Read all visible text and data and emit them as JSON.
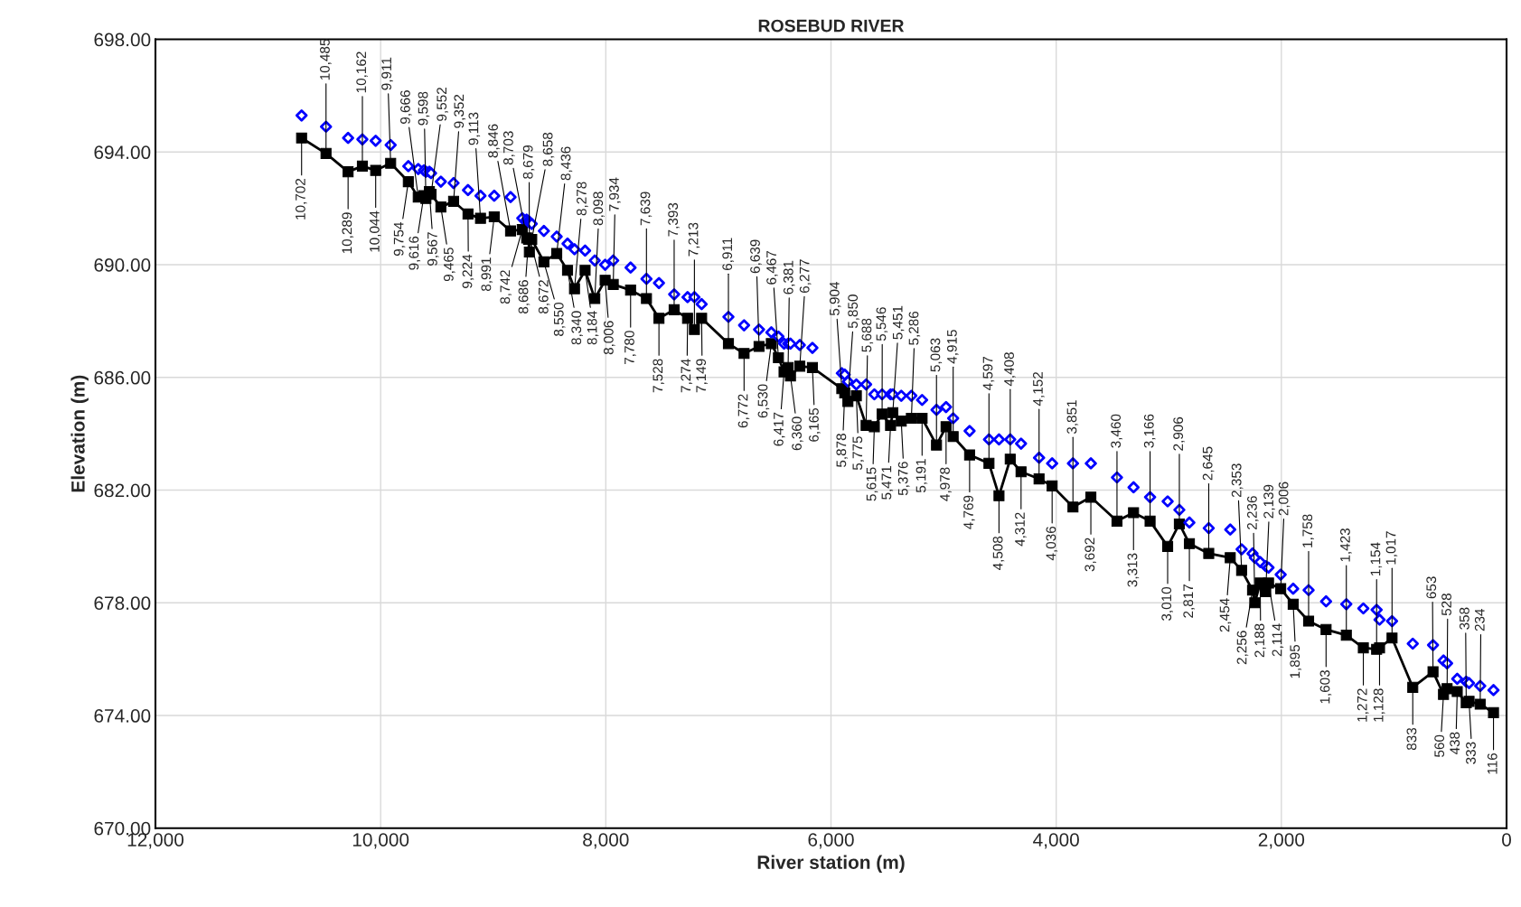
{
  "chart_data": {
    "type": "line",
    "title": "ROSEBUD RIVER",
    "xlabel": "River station (m)",
    "ylabel": "Elevation (m)",
    "xlim": [
      12000,
      0
    ],
    "xticks": [
      {
        "value": 12000,
        "label": "12,000"
      },
      {
        "value": 10000,
        "label": "10,000"
      },
      {
        "value": 8000,
        "label": "8,000"
      },
      {
        "value": 6000,
        "label": "6,000"
      },
      {
        "value": 4000,
        "label": "4,000"
      },
      {
        "value": 2000,
        "label": "2,000"
      },
      0
    ],
    "ylim": [
      670,
      698
    ],
    "yticks": [
      {
        "value": 670,
        "label": "670.00"
      },
      {
        "value": 674,
        "label": "674.00"
      },
      {
        "value": 678,
        "label": "678.00"
      },
      {
        "value": 682,
        "label": "682.00"
      },
      {
        "value": 686,
        "label": "686.00"
      },
      {
        "value": 690,
        "label": "690.00"
      },
      {
        "value": 694,
        "label": "694.00"
      },
      {
        "value": 698,
        "label": "698.00"
      }
    ],
    "grid": true,
    "x": [
      10702,
      10485,
      10289,
      10162,
      10044,
      9911,
      9754,
      9666,
      9616,
      9598,
      9567,
      9552,
      9465,
      9352,
      9224,
      9113,
      8991,
      8846,
      8742,
      8703,
      8686,
      8679,
      8672,
      8658,
      8550,
      8436,
      8340,
      8278,
      8184,
      8098,
      8006,
      7934,
      7780,
      7639,
      7528,
      7393,
      7274,
      7213,
      7149,
      6911,
      6772,
      6639,
      6530,
      6467,
      6417,
      6381,
      6360,
      6277,
      6165,
      5904,
      5878,
      5850,
      5775,
      5688,
      5615,
      5546,
      5471,
      5451,
      5376,
      5286,
      5191,
      5063,
      4978,
      4915,
      4769,
      4597,
      4508,
      4408,
      4312,
      4152,
      4036,
      3851,
      3692,
      3460,
      3313,
      3166,
      3010,
      2906,
      2817,
      2645,
      2454,
      2353,
      2256,
      2236,
      2188,
      2139,
      2114,
      2006,
      1895,
      1758,
      1603,
      1423,
      1272,
      1154,
      1128,
      1017,
      833,
      653,
      560,
      528,
      438,
      358,
      333,
      234,
      116
    ],
    "series": [
      {
        "color": "#000000",
        "marker": "square",
        "line_style": "solid",
        "values": [
          694.5,
          693.95,
          693.3,
          693.5,
          693.35,
          693.6,
          692.95,
          692.4,
          692.45,
          692.35,
          692.6,
          692.5,
          692.05,
          692.25,
          691.8,
          691.65,
          691.7,
          691.2,
          691.25,
          690.95,
          690.9,
          690.45,
          690.9,
          690.9,
          690.1,
          690.4,
          689.8,
          689.15,
          689.8,
          688.8,
          689.45,
          689.3,
          689.1,
          688.8,
          688.1,
          688.4,
          688.1,
          687.7,
          688.1,
          687.2,
          686.85,
          687.1,
          687.2,
          686.7,
          686.2,
          686.35,
          686.05,
          686.4,
          686.35,
          685.6,
          685.45,
          685.15,
          685.35,
          684.3,
          684.25,
          684.7,
          684.3,
          684.75,
          684.45,
          684.55,
          684.55,
          683.6,
          684.25,
          683.9,
          683.25,
          682.95,
          681.8,
          683.1,
          682.65,
          682.4,
          682.15,
          681.4,
          681.75,
          680.9,
          681.2,
          680.9,
          680.0,
          680.8,
          680.1,
          679.75,
          679.6,
          679.15,
          678.45,
          678.0,
          678.7,
          678.4,
          678.7,
          678.5,
          677.95,
          677.35,
          677.05,
          676.85,
          676.4,
          676.35,
          676.4,
          676.75,
          675.0,
          675.55,
          674.75,
          674.95,
          674.85,
          674.45,
          674.5,
          674.4,
          674.1
        ]
      },
      {
        "type": "scatter",
        "color": "#0000ff",
        "marker": "diamond",
        "values": [
          695.3,
          694.9,
          694.5,
          694.45,
          694.4,
          694.25,
          693.5,
          693.4,
          693.35,
          693.3,
          693.3,
          693.25,
          692.95,
          692.9,
          692.65,
          692.45,
          692.45,
          692.4,
          691.65,
          691.6,
          691.55,
          691.5,
          691.5,
          691.45,
          691.2,
          691.0,
          690.75,
          690.55,
          690.5,
          690.15,
          690.0,
          690.15,
          689.9,
          689.5,
          689.35,
          688.95,
          688.85,
          688.85,
          688.6,
          688.15,
          687.85,
          687.7,
          687.6,
          687.45,
          687.2,
          687.2,
          687.2,
          687.15,
          687.05,
          686.15,
          686.1,
          685.85,
          685.75,
          685.75,
          685.4,
          685.4,
          685.4,
          685.4,
          685.35,
          685.35,
          685.2,
          684.85,
          684.95,
          684.55,
          684.1,
          683.8,
          683.8,
          683.8,
          683.65,
          683.15,
          682.95,
          682.95,
          682.95,
          682.45,
          682.1,
          681.75,
          681.6,
          681.3,
          680.85,
          680.65,
          680.6,
          679.9,
          679.75,
          679.6,
          679.45,
          679.3,
          679.25,
          679.0,
          678.5,
          678.45,
          678.05,
          677.95,
          677.8,
          677.75,
          677.4,
          677.35,
          676.55,
          676.5,
          675.95,
          675.85,
          675.3,
          675.2,
          675.15,
          675.05,
          674.9
        ]
      }
    ],
    "annotations": [
      {
        "text": "10,702",
        "x": 10702,
        "y": 694.5
      },
      {
        "text": "10,485",
        "x": 10485,
        "y": 693.95
      },
      {
        "text": "10,289",
        "x": 10289,
        "y": 693.3
      },
      {
        "text": "10,162",
        "x": 10162,
        "y": 693.5
      },
      {
        "text": "10,044",
        "x": 10044,
        "y": 693.35
      },
      {
        "text": "9,911",
        "x": 9911,
        "y": 693.6
      },
      {
        "text": "9,754",
        "x": 9754,
        "y": 692.95
      },
      {
        "text": "9,666",
        "x": 9666,
        "y": 692.4
      },
      {
        "text": "9,616",
        "x": 9616,
        "y": 692.45
      },
      {
        "text": "9,598",
        "x": 9598,
        "y": 692.35
      },
      {
        "text": "9,567",
        "x": 9567,
        "y": 692.6
      },
      {
        "text": "9,552",
        "x": 9552,
        "y": 692.5
      },
      {
        "text": "9,465",
        "x": 9465,
        "y": 692.05
      },
      {
        "text": "9,352",
        "x": 9352,
        "y": 692.25
      },
      {
        "text": "9,224",
        "x": 9224,
        "y": 691.8
      },
      {
        "text": "9,113",
        "x": 9113,
        "y": 691.65
      },
      {
        "text": "8,991",
        "x": 8991,
        "y": 691.7
      },
      {
        "text": "8,846",
        "x": 8846,
        "y": 691.2
      },
      {
        "text": "8,742",
        "x": 8742,
        "y": 691.25
      },
      {
        "text": "8,703",
        "x": 8703,
        "y": 690.95
      },
      {
        "text": "8,686",
        "x": 8686,
        "y": 690.9
      },
      {
        "text": "8,679",
        "x": 8679,
        "y": 690.45
      },
      {
        "text": "8,672",
        "x": 8672,
        "y": 690.9
      },
      {
        "text": "8,658",
        "x": 8658,
        "y": 690.9
      },
      {
        "text": "8,550",
        "x": 8550,
        "y": 690.1
      },
      {
        "text": "8,436",
        "x": 8436,
        "y": 690.4
      },
      {
        "text": "8,340",
        "x": 8340,
        "y": 689.8
      },
      {
        "text": "8,278",
        "x": 8278,
        "y": 689.15
      },
      {
        "text": "8,184",
        "x": 8184,
        "y": 689.8
      },
      {
        "text": "8,098",
        "x": 8098,
        "y": 688.8
      },
      {
        "text": "8,006",
        "x": 8006,
        "y": 689.45
      },
      {
        "text": "7,934",
        "x": 7934,
        "y": 689.3
      },
      {
        "text": "7,780",
        "x": 7780,
        "y": 689.1
      },
      {
        "text": "7,639",
        "x": 7639,
        "y": 688.8
      },
      {
        "text": "7,528",
        "x": 7528,
        "y": 688.1
      },
      {
        "text": "7,393",
        "x": 7393,
        "y": 688.4
      },
      {
        "text": "7,274",
        "x": 7274,
        "y": 688.1
      },
      {
        "text": "7,213",
        "x": 7213,
        "y": 687.7
      },
      {
        "text": "7,149",
        "x": 7149,
        "y": 688.1
      },
      {
        "text": "6,911",
        "x": 6911,
        "y": 687.2
      },
      {
        "text": "6,772",
        "x": 6772,
        "y": 686.85
      },
      {
        "text": "6,639",
        "x": 6639,
        "y": 687.1
      },
      {
        "text": "6,530",
        "x": 6530,
        "y": 687.2
      },
      {
        "text": "6,467",
        "x": 6467,
        "y": 686.7
      },
      {
        "text": "6,417",
        "x": 6417,
        "y": 686.2
      },
      {
        "text": "6,381",
        "x": 6381,
        "y": 686.35
      },
      {
        "text": "6,360",
        "x": 6360,
        "y": 686.05
      },
      {
        "text": "6,277",
        "x": 6277,
        "y": 686.4
      },
      {
        "text": "6,165",
        "x": 6165,
        "y": 686.35
      },
      {
        "text": "5,904",
        "x": 5904,
        "y": 685.6
      },
      {
        "text": "5,878",
        "x": 5878,
        "y": 685.45
      },
      {
        "text": "5,850",
        "x": 5850,
        "y": 685.15
      },
      {
        "text": "5,775",
        "x": 5775,
        "y": 685.35
      },
      {
        "text": "5,688",
        "x": 5688,
        "y": 684.3
      },
      {
        "text": "5,615",
        "x": 5615,
        "y": 684.25
      },
      {
        "text": "5,546",
        "x": 5546,
        "y": 684.7
      },
      {
        "text": "5,471",
        "x": 5471,
        "y": 684.3
      },
      {
        "text": "5,451",
        "x": 5451,
        "y": 684.75
      },
      {
        "text": "5,376",
        "x": 5376,
        "y": 684.45
      },
      {
        "text": "5,286",
        "x": 5286,
        "y": 684.55
      },
      {
        "text": "5,191",
        "x": 5191,
        "y": 684.55
      },
      {
        "text": "5,063",
        "x": 5063,
        "y": 683.6
      },
      {
        "text": "4,978",
        "x": 4978,
        "y": 684.25
      },
      {
        "text": "4,915",
        "x": 4915,
        "y": 683.9
      },
      {
        "text": "4,769",
        "x": 4769,
        "y": 683.25
      },
      {
        "text": "4,597",
        "x": 4597,
        "y": 682.95
      },
      {
        "text": "4,508",
        "x": 4508,
        "y": 681.8
      },
      {
        "text": "4,408",
        "x": 4408,
        "y": 683.1
      },
      {
        "text": "4,312",
        "x": 4312,
        "y": 682.65
      },
      {
        "text": "4,152",
        "x": 4152,
        "y": 682.4
      },
      {
        "text": "4,036",
        "x": 4036,
        "y": 682.15
      },
      {
        "text": "3,851",
        "x": 3851,
        "y": 681.4
      },
      {
        "text": "3,692",
        "x": 3692,
        "y": 681.75
      },
      {
        "text": "3,460",
        "x": 3460,
        "y": 680.9
      },
      {
        "text": "3,313",
        "x": 3313,
        "y": 681.2
      },
      {
        "text": "3,166",
        "x": 3166,
        "y": 680.9
      },
      {
        "text": "3,010",
        "x": 3010,
        "y": 680.0
      },
      {
        "text": "2,906",
        "x": 2906,
        "y": 680.8
      },
      {
        "text": "2,817",
        "x": 2817,
        "y": 680.1
      },
      {
        "text": "2,645",
        "x": 2645,
        "y": 679.75
      },
      {
        "text": "2,454",
        "x": 2454,
        "y": 679.6
      },
      {
        "text": "2,353",
        "x": 2353,
        "y": 679.15
      },
      {
        "text": "2,256",
        "x": 2256,
        "y": 678.45
      },
      {
        "text": "2,236",
        "x": 2236,
        "y": 678.0
      },
      {
        "text": "2,188",
        "x": 2188,
        "y": 678.7
      },
      {
        "text": "2,139",
        "x": 2139,
        "y": 678.4
      },
      {
        "text": "2,114",
        "x": 2114,
        "y": 678.7
      },
      {
        "text": "2,006",
        "x": 2006,
        "y": 678.5
      },
      {
        "text": "1,895",
        "x": 1895,
        "y": 677.95
      },
      {
        "text": "1,758",
        "x": 1758,
        "y": 677.35
      },
      {
        "text": "1,603",
        "x": 1603,
        "y": 677.05
      },
      {
        "text": "1,423",
        "x": 1423,
        "y": 676.85
      },
      {
        "text": "1,272",
        "x": 1272,
        "y": 676.4
      },
      {
        "text": "1,154",
        "x": 1154,
        "y": 676.35
      },
      {
        "text": "1,128",
        "x": 1128,
        "y": 676.4
      },
      {
        "text": "1,017",
        "x": 1017,
        "y": 676.75
      },
      {
        "text": "833",
        "x": 833,
        "y": 675.0
      },
      {
        "text": "653",
        "x": 653,
        "y": 675.55
      },
      {
        "text": "560",
        "x": 560,
        "y": 674.75
      },
      {
        "text": "528",
        "x": 528,
        "y": 674.95
      },
      {
        "text": "438",
        "x": 438,
        "y": 674.85
      },
      {
        "text": "358",
        "x": 358,
        "y": 674.45
      },
      {
        "text": "333",
        "x": 333,
        "y": 674.5
      },
      {
        "text": "234",
        "x": 234,
        "y": 674.4
      },
      {
        "text": "116",
        "x": 116,
        "y": 674.1
      }
    ]
  }
}
